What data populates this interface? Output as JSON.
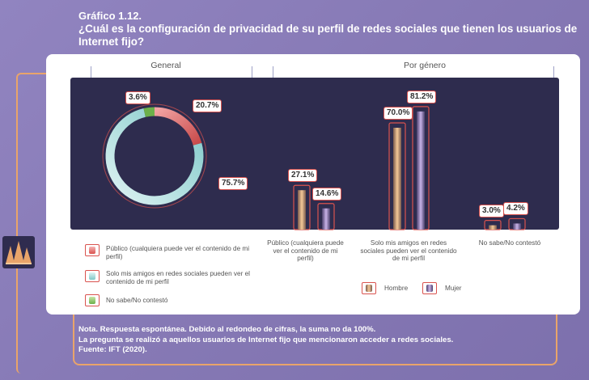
{
  "title": "Gráfico 1.12.",
  "question": "¿Cuál es la configuración de privacidad de su perfil de redes sociales que tienen los usuarios de Internet fijo?",
  "sections": {
    "general": "General",
    "gender": "Por género"
  },
  "notes": [
    "Nota. Respuesta espontánea. Debido al redondeo de cifras, la suma no da 100%.",
    "La pregunta se realizó a aquellos usuarios de Internet fijo que mencionaron acceder a redes sociales.",
    "Fuente:  IFT (2020)."
  ],
  "colors": {
    "publico": "#d9534f",
    "amigos": "#7ec8c8",
    "nosabe": "#6cb04a",
    "hombre": "#f4c898",
    "mujer": "#c9b3e8"
  },
  "chart_data": [
    {
      "type": "pie",
      "title": "General",
      "categories": [
        "Público",
        "Solo mis amigos en redes sociales",
        "No sabe/No contestó"
      ],
      "values": [
        20.7,
        75.7,
        3.6
      ],
      "value_labels": [
        "20.7%",
        "75.7%",
        "3.6%"
      ],
      "legend": [
        "Público (cualquiera puede ver el contenido de mi perfil)",
        "Solo mis amigos en redes sociales pueden ver el contenido de mi perfil",
        "No sabe/No contestó"
      ]
    },
    {
      "type": "bar",
      "title": "Por género",
      "categories": [
        "Público (cualquiera puede ver el contenido de mi perfil)",
        "Solo mis amigos en redes sociales pueden ver el contenido de mi perfil",
        "No sabe/No contestó"
      ],
      "series": [
        {
          "name": "Hombre",
          "values": [
            27.1,
            70.0,
            3.0
          ],
          "value_labels": [
            "27.1%",
            "70.0%",
            "3.0%"
          ]
        },
        {
          "name": "Mujer",
          "values": [
            14.6,
            81.2,
            4.2
          ],
          "value_labels": [
            "14.6%",
            "81.2%",
            "4.2%"
          ]
        }
      ],
      "ylim": [
        0,
        100
      ]
    }
  ]
}
